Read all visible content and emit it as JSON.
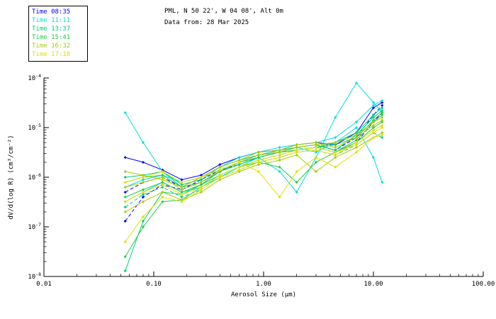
{
  "header": {
    "title_line1": "PML, N 50 22', W 04 08', Alt 0m",
    "title_line2": "Data from: 28 Mar 2025"
  },
  "legend": {
    "entries": [
      {
        "label": "Time 08:35",
        "color": "#0000ff"
      },
      {
        "label": "Time 11:11",
        "color": "#00dddd"
      },
      {
        "label": "Time 13:37",
        "color": "#00cc7a"
      },
      {
        "label": "Time 15:41",
        "color": "#22cc44"
      },
      {
        "label": "Time 16:32",
        "color": "#a8cc00"
      },
      {
        "label": "Time 17:18",
        "color": "#e0e000"
      }
    ]
  },
  "chart_data": {
    "type": "line",
    "title": "PML, N 50 22', W 04 08', Alt 0m",
    "subtitle": "Data from: 28 Mar 2025",
    "xlabel": "Aerosol Size (μm)",
    "ylabel": "dV/d(log R) (cm³/cm⁻²)",
    "xscale": "log",
    "yscale": "log",
    "xlim": [
      0.01,
      100.0
    ],
    "ylim": [
      1e-08,
      0.0001
    ],
    "grid": false,
    "legend_position": "top-left",
    "x_ticks": [
      {
        "label": "0.01",
        "value": 0.01
      },
      {
        "label": "0.10",
        "value": 0.1
      },
      {
        "label": "1.00",
        "value": 1.0
      },
      {
        "label": "10.00",
        "value": 10.0
      },
      {
        "label": "100.00",
        "value": 100.0
      }
    ],
    "y_ticks": [
      {
        "base": "10",
        "exp": "-4",
        "value": 0.0001
      },
      {
        "base": "10",
        "exp": "-5",
        "value": 1e-05
      },
      {
        "base": "10",
        "exp": "-6",
        "value": 1e-06
      },
      {
        "base": "10",
        "exp": "-7",
        "value": 1e-07
      },
      {
        "base": "10",
        "exp": "-8",
        "value": 1e-08
      }
    ],
    "x": [
      0.055,
      0.08,
      0.12,
      0.18,
      0.27,
      0.4,
      0.6,
      0.9,
      1.4,
      2.0,
      3.0,
      4.5,
      7.0,
      10.0,
      12.0
    ],
    "series": [
      {
        "name": "Time 08:35 run 1",
        "time": "08:35",
        "color": "#0000ff",
        "dash": false,
        "y": [
          2.5e-06,
          2e-06,
          1.4e-06,
          8.9e-07,
          1.1e-06,
          1.8e-06,
          2.5e-06,
          3.2e-06,
          3.5e-06,
          4.5e-06,
          5e-06,
          4.5e-06,
          7.9e-06,
          2.5e-05,
          3.2e-05
        ]
      },
      {
        "name": "Time 08:35 run 2",
        "time": "08:35",
        "color": "#0000ff",
        "dash": true,
        "y": [
          5e-07,
          7.9e-07,
          1e-06,
          6.3e-07,
          7.9e-07,
          1.3e-06,
          2e-06,
          2.8e-06,
          3.2e-06,
          4e-06,
          4.5e-06,
          3.5e-06,
          6.3e-06,
          1.8e-05,
          2.8e-05
        ]
      },
      {
        "name": "Time 08:35 run 3",
        "time": "08:35",
        "color": "#0000ff",
        "dash": true,
        "y": [
          1.3e-07,
          4e-07,
          7.1e-07,
          5.6e-07,
          8.9e-07,
          1.4e-06,
          1.8e-06,
          2.5e-06,
          3.2e-06,
          3.5e-06,
          4e-06,
          3.2e-06,
          5e-06,
          1.3e-05,
          2e-05
        ]
      },
      {
        "name": "Time 11:11 run 1",
        "time": "11:11",
        "color": "#00dddd",
        "dash": false,
        "y": [
          2e-05,
          5e-06,
          1.3e-06,
          6.3e-07,
          1e-06,
          1.6e-06,
          2.5e-06,
          3.2e-06,
          4e-06,
          4.5e-06,
          5e-06,
          6.3e-06,
          1.3e-05,
          2.8e-05,
          3.5e-05
        ]
      },
      {
        "name": "Time 11:11 run 2",
        "time": "11:11",
        "color": "#00dddd",
        "dash": false,
        "y": [
          3.2e-07,
          5e-07,
          7.9e-07,
          5e-07,
          6.3e-07,
          1e-06,
          1.6e-06,
          2.5e-06,
          1.3e-06,
          5e-07,
          2.5e-06,
          1.6e-05,
          7.9e-05,
          3.2e-05,
          2e-05
        ]
      },
      {
        "name": "Time 11:11 run 3",
        "time": "11:11",
        "color": "#00dddd",
        "dash": false,
        "y": [
          6.3e-07,
          8.9e-07,
          1.1e-06,
          7.9e-07,
          1e-06,
          1.4e-06,
          2e-06,
          2.5e-06,
          3.2e-06,
          4e-06,
          3.2e-06,
          5e-06,
          1e-05,
          2.5e-06,
          7.9e-07
        ]
      },
      {
        "name": "Time 13:37 run 1",
        "time": "13:37",
        "color": "#00cc7a",
        "dash": false,
        "y": [
          1.3e-08,
          1.3e-07,
          5e-07,
          4.5e-07,
          7.1e-07,
          1.3e-06,
          1.8e-06,
          2.5e-06,
          3.2e-06,
          3.5e-06,
          4e-06,
          5e-06,
          7.9e-06,
          1.8e-05,
          2.5e-05
        ]
      },
      {
        "name": "Time 13:37 run 2",
        "time": "13:37",
        "color": "#00cc7a",
        "dash": false,
        "y": [
          1e-06,
          1.1e-06,
          1.3e-06,
          7.1e-07,
          8.9e-07,
          1.6e-06,
          2.2e-06,
          2.8e-06,
          3.5e-06,
          4e-06,
          4.5e-06,
          3.5e-06,
          7.1e-06,
          1.6e-05,
          2.2e-05
        ]
      },
      {
        "name": "Time 13:37 run 3",
        "time": "13:37",
        "color": "#00cc7a",
        "dash": true,
        "y": [
          2.5e-07,
          4.5e-07,
          6.3e-07,
          4e-07,
          5.6e-07,
          1e-06,
          1.4e-06,
          2e-06,
          2.5e-06,
          3.2e-06,
          3.5e-06,
          2.8e-06,
          4.5e-06,
          7.9e-06,
          6.3e-06
        ]
      },
      {
        "name": "Time 15:41 run 1",
        "time": "15:41",
        "color": "#22cc44",
        "dash": false,
        "y": [
          2.5e-08,
          1e-07,
          3.2e-07,
          3.5e-07,
          6.3e-07,
          1.1e-06,
          1.6e-06,
          2.2e-06,
          2.8e-06,
          3.5e-06,
          4e-06,
          4.5e-06,
          6.3e-06,
          1.4e-05,
          2e-05
        ]
      },
      {
        "name": "Time 15:41 run 2",
        "time": "15:41",
        "color": "#22cc44",
        "dash": false,
        "y": [
          7.9e-07,
          1e-06,
          1.1e-06,
          6.3e-07,
          7.9e-07,
          1.3e-06,
          2e-06,
          2.5e-06,
          3.2e-06,
          3.5e-06,
          4e-06,
          3.2e-06,
          5.6e-06,
          1.3e-05,
          1.8e-05
        ]
      },
      {
        "name": "Time 15:41 run 3",
        "time": "15:41",
        "color": "#22cc44",
        "dash": false,
        "y": [
          4e-07,
          5.6e-07,
          7.9e-07,
          5e-07,
          7.1e-07,
          1.1e-06,
          1.6e-06,
          2e-06,
          1.6e-06,
          7.9e-07,
          2e-06,
          3.2e-06,
          5e-06,
          1e-05,
          1.3e-05
        ]
      },
      {
        "name": "Time 16:32 run 1",
        "time": "16:32",
        "color": "#a8cc00",
        "dash": false,
        "y": [
          6.3e-07,
          7.9e-07,
          1e-06,
          5.6e-07,
          7.9e-07,
          1.4e-06,
          2e-06,
          2.8e-06,
          3.2e-06,
          4e-06,
          4.5e-06,
          5e-06,
          7.1e-06,
          1.3e-05,
          1.6e-05
        ]
      },
      {
        "name": "Time 16:32 run 2",
        "time": "16:32",
        "color": "#a8cc00",
        "dash": false,
        "y": [
          2e-07,
          3.2e-07,
          5e-07,
          3.5e-07,
          5e-07,
          8.9e-07,
          1.3e-06,
          1.8e-06,
          2.2e-06,
          2.8e-06,
          1.3e-06,
          2.5e-06,
          4e-06,
          6.3e-06,
          7.9e-06
        ]
      },
      {
        "name": "Time 16:32 run 3",
        "time": "16:32",
        "color": "#a8cc00",
        "dash": false,
        "y": [
          1.3e-06,
          1.1e-06,
          8.9e-07,
          6.3e-07,
          1e-06,
          1.6e-06,
          2.2e-06,
          3.2e-06,
          3.5e-06,
          4.5e-06,
          5e-06,
          4e-06,
          6.3e-06,
          1.1e-05,
          1.4e-05
        ]
      },
      {
        "name": "Time 17:18 run 1",
        "time": "17:18",
        "color": "#e0e000",
        "dash": false,
        "y": [
          5e-08,
          1.6e-07,
          4e-07,
          3.2e-07,
          5.6e-07,
          1e-06,
          1.4e-06,
          2e-06,
          2.5e-06,
          3.2e-06,
          3.5e-06,
          2.8e-06,
          5e-06,
          8.9e-06,
          1.1e-05
        ]
      },
      {
        "name": "Time 17:18 run 2",
        "time": "17:18",
        "color": "#e0e000",
        "dash": false,
        "y": [
          7.9e-07,
          1e-06,
          1.3e-06,
          7.9e-07,
          1e-06,
          1.4e-06,
          2e-06,
          1.3e-06,
          4e-07,
          1.3e-06,
          2.5e-06,
          1.6e-06,
          3.2e-06,
          6.3e-06,
          7.1e-06
        ]
      },
      {
        "name": "Time 17:18 run 3",
        "time": "17:18",
        "color": "#e0e000",
        "dash": false,
        "y": [
          3.2e-07,
          5e-07,
          7.1e-07,
          4.5e-07,
          6.3e-07,
          1.1e-06,
          1.6e-06,
          2.2e-06,
          2.8e-06,
          3.5e-06,
          4e-06,
          3.2e-06,
          4.5e-06,
          7.9e-06,
          1e-05
        ]
      }
    ]
  }
}
